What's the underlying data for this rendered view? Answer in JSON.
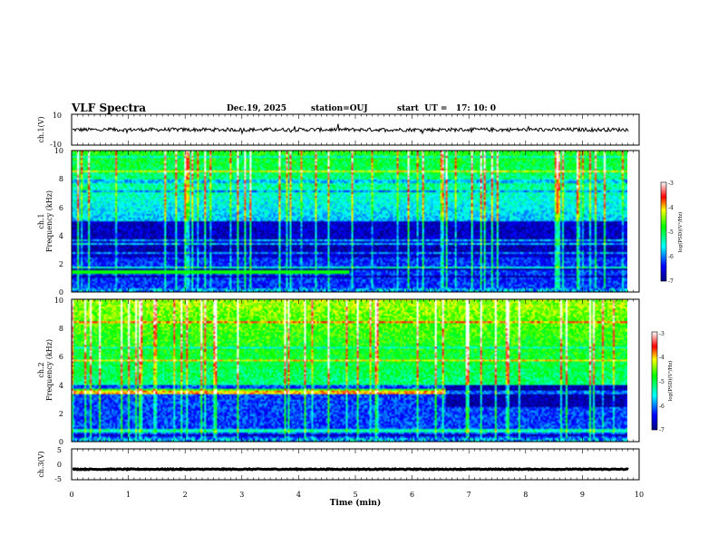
{
  "header": {
    "title": "VLF Spectra",
    "date": "Dec.19, 2025",
    "station": "station=OUJ",
    "start": "start  UT =   17: 10: 0"
  },
  "chart_data": {
    "type": "heatmap",
    "xlabel": "Time  (min)",
    "x_ticks": [
      "0",
      "1",
      "2",
      "3",
      "4",
      "5",
      "6",
      "7",
      "8",
      "9",
      "10"
    ],
    "xlim": [
      0,
      10
    ],
    "panels": [
      {
        "name": "ch1-waveform",
        "type": "line",
        "ylabel": "ch.1(V)",
        "ylim": [
          -10,
          10
        ],
        "y_ticks": [
          "10",
          "-10"
        ],
        "baseline": 0,
        "noise_amplitude": 1.2
      },
      {
        "name": "ch1-spectrogram",
        "type": "heatmap",
        "ylabel": "ch.1",
        "ylabel2": "Frequency (kHz)",
        "ylim": [
          0,
          10
        ],
        "y_ticks": [
          "0",
          "2",
          "4",
          "6",
          "8",
          "10"
        ],
        "colorbar": {
          "label": "log(PSD)(V²/Hz)",
          "ticks": [
            "-3",
            "-4",
            "-5",
            "-6",
            "-7"
          ],
          "range": [
            -7,
            -3
          ]
        }
      },
      {
        "name": "ch2-spectrogram",
        "type": "heatmap",
        "ylabel": "ch.2",
        "ylabel2": "Frequency (kHz)",
        "ylim": [
          0,
          10
        ],
        "y_ticks": [
          "0",
          "2",
          "4",
          "6",
          "8",
          "10"
        ],
        "colorbar": {
          "label": "log(PSD)(V²/Hz)",
          "ticks": [
            "-3",
            "-4",
            "-5",
            "-6",
            "-7"
          ],
          "range": [
            -7,
            -3
          ]
        }
      },
      {
        "name": "ch3-waveform",
        "type": "line",
        "ylabel": "ch.3(V)",
        "ylim": [
          -5,
          5
        ],
        "y_ticks": [
          "5",
          "0",
          "-5"
        ],
        "baseline": -1.6,
        "noise_amplitude": 0.15
      }
    ]
  }
}
